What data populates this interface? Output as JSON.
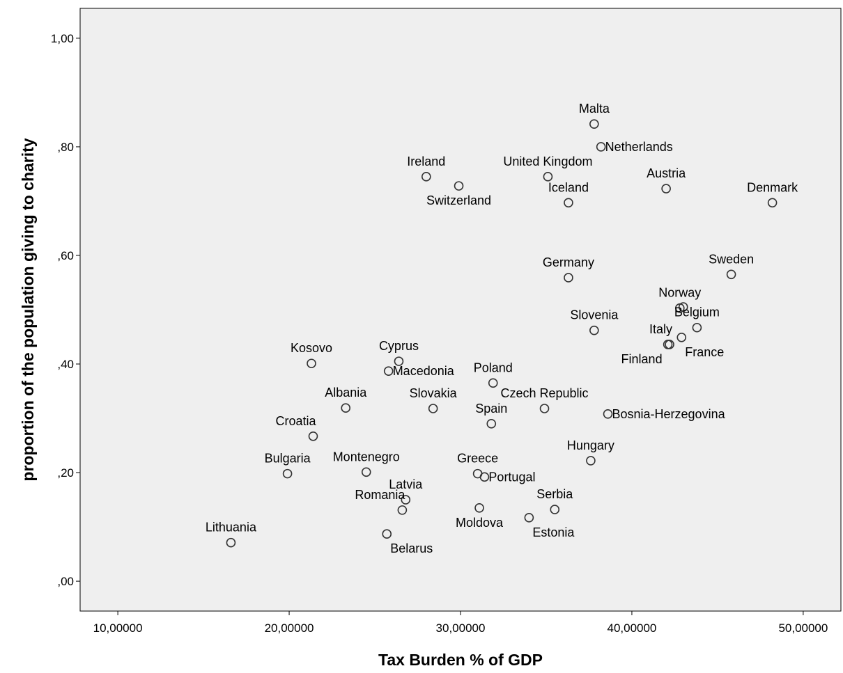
{
  "chart_data": {
    "type": "scatter",
    "xlabel": "Tax Burden % of GDP",
    "ylabel": "proportion of the population giving to charity",
    "xlim": [
      7.8,
      52.2
    ],
    "ylim": [
      -0.055,
      1.055
    ],
    "x_ticks": [
      {
        "value": 10,
        "label": "10,00000"
      },
      {
        "value": 20,
        "label": "20,00000"
      },
      {
        "value": 30,
        "label": "30,00000"
      },
      {
        "value": 40,
        "label": "40,00000"
      },
      {
        "value": 50,
        "label": "50,00000"
      }
    ],
    "y_ticks": [
      {
        "value": 0,
        "label": ",00"
      },
      {
        "value": 0.2,
        "label": ",20"
      },
      {
        "value": 0.4,
        "label": ",40"
      },
      {
        "value": 0.6,
        "label": ",60"
      },
      {
        "value": 0.8,
        "label": ",80"
      },
      {
        "value": 1.0,
        "label": "1,00"
      }
    ],
    "grid": false,
    "legend": "none",
    "colors": {
      "plot_background": "#efefef",
      "marker_stroke": "#333333"
    },
    "points": [
      {
        "label": "Malta",
        "x": 37.8,
        "y": 0.842,
        "pos": "above"
      },
      {
        "label": "Netherlands",
        "x": 38.2,
        "y": 0.8,
        "pos": "right"
      },
      {
        "label": "Ireland",
        "x": 28.0,
        "y": 0.745,
        "pos": "above"
      },
      {
        "label": "United Kingdom",
        "x": 35.1,
        "y": 0.745,
        "pos": "above"
      },
      {
        "label": "Switzerland",
        "x": 29.9,
        "y": 0.728,
        "pos": "below"
      },
      {
        "label": "Austria",
        "x": 42.0,
        "y": 0.723,
        "pos": "above"
      },
      {
        "label": "Iceland",
        "x": 36.3,
        "y": 0.697,
        "pos": "above"
      },
      {
        "label": "Denmark",
        "x": 48.2,
        "y": 0.697,
        "pos": "above"
      },
      {
        "label": "Sweden",
        "x": 45.8,
        "y": 0.565,
        "pos": "above"
      },
      {
        "label": "Germany",
        "x": 36.3,
        "y": 0.559,
        "pos": "above"
      },
      {
        "label": "Norway",
        "x": 42.8,
        "y": 0.503,
        "pos": "above"
      },
      {
        "label": "",
        "x": 43.0,
        "y": 0.505,
        "pos": "none"
      },
      {
        "label": "Belgium",
        "x": 43.8,
        "y": 0.467,
        "pos": "above"
      },
      {
        "label": "Slovenia",
        "x": 37.8,
        "y": 0.462,
        "pos": "above"
      },
      {
        "label": "France",
        "x": 42.9,
        "y": 0.449,
        "pos": "below-right"
      },
      {
        "label": "Italy",
        "x": 42.2,
        "y": 0.436,
        "pos": "above-left"
      },
      {
        "label": "Finland",
        "x": 42.1,
        "y": 0.436,
        "pos": "below-left"
      },
      {
        "label": "Cyprus",
        "x": 26.4,
        "y": 0.405,
        "pos": "above"
      },
      {
        "label": "Kosovo",
        "x": 21.3,
        "y": 0.401,
        "pos": "above"
      },
      {
        "label": "Macedonia",
        "x": 25.8,
        "y": 0.387,
        "pos": "right"
      },
      {
        "label": "Poland",
        "x": 31.9,
        "y": 0.365,
        "pos": "above"
      },
      {
        "label": "Albania",
        "x": 23.3,
        "y": 0.319,
        "pos": "above"
      },
      {
        "label": "Slovakia",
        "x": 28.4,
        "y": 0.318,
        "pos": "above"
      },
      {
        "label": "Czech Republic",
        "x": 34.9,
        "y": 0.318,
        "pos": "above"
      },
      {
        "label": "Bosnia-Herzegovina",
        "x": 38.6,
        "y": 0.308,
        "pos": "right"
      },
      {
        "label": "Spain",
        "x": 31.8,
        "y": 0.29,
        "pos": "above"
      },
      {
        "label": "Croatia",
        "x": 21.4,
        "y": 0.267,
        "pos": "above-left"
      },
      {
        "label": "Hungary",
        "x": 37.6,
        "y": 0.222,
        "pos": "above"
      },
      {
        "label": "Montenegro",
        "x": 24.5,
        "y": 0.201,
        "pos": "above"
      },
      {
        "label": "Bulgaria",
        "x": 19.9,
        "y": 0.198,
        "pos": "above"
      },
      {
        "label": "Greece",
        "x": 31.0,
        "y": 0.198,
        "pos": "above"
      },
      {
        "label": "Portugal",
        "x": 31.4,
        "y": 0.192,
        "pos": "right"
      },
      {
        "label": "Latvia",
        "x": 26.8,
        "y": 0.15,
        "pos": "above"
      },
      {
        "label": "Romania",
        "x": 26.6,
        "y": 0.131,
        "pos": "above-left"
      },
      {
        "label": "Moldova",
        "x": 31.1,
        "y": 0.135,
        "pos": "below"
      },
      {
        "label": "Serbia",
        "x": 35.5,
        "y": 0.132,
        "pos": "above"
      },
      {
        "label": "Estonia",
        "x": 34.0,
        "y": 0.117,
        "pos": "below-right"
      },
      {
        "label": "Belarus",
        "x": 25.7,
        "y": 0.087,
        "pos": "below-right"
      },
      {
        "label": "Lithuania",
        "x": 16.6,
        "y": 0.071,
        "pos": "above"
      }
    ]
  }
}
